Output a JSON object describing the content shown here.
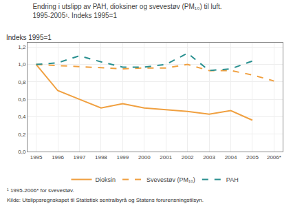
{
  "chart_data": {
    "type": "line",
    "title": "Endring i utslipp av PAH, dioksiner og svevestøv (PM₁₀) til luft.\n1995-2005¹. Indeks 1995=1",
    "subtitle": "Indeks 1995=1",
    "annotations": [
      "¹ 1995-2006* for svevestøv.",
      "Kilde: Utslippsregnskapet til Statistisk sentralbyrå og Statens forurensningstilsyn."
    ],
    "x": [
      1995,
      1996,
      1997,
      1998,
      1999,
      2000,
      2001,
      2002,
      2003,
      2004,
      2005,
      2006
    ],
    "series": [
      {
        "name": "Dioksin",
        "color": "#f0a040",
        "line_style": "solid",
        "values": [
          1.0,
          0.7,
          0.6,
          0.5,
          0.55,
          0.5,
          0.48,
          0.46,
          0.43,
          0.47,
          0.36,
          null
        ]
      },
      {
        "name": "Svevestøv (PM₁₀)",
        "color": "#f0a040",
        "line_style": "dashed",
        "x": [
          1995,
          1999,
          2000,
          2001,
          2002,
          2003,
          2004,
          2005,
          2006
        ],
        "values": [
          1.0,
          0.95,
          0.96,
          0.96,
          1.0,
          0.93,
          0.93,
          0.88,
          0.81
        ]
      },
      {
        "name": "PAH",
        "color": "#2a9090",
        "line_style": "dashed",
        "values": [
          1.0,
          1.02,
          1.1,
          1.03,
          0.97,
          0.97,
          1.0,
          1.13,
          0.93,
          0.95,
          1.04,
          null
        ]
      }
    ],
    "xlim": [
      1994.6,
      2006.4
    ],
    "xticks": [
      1995,
      1996,
      1997,
      1998,
      1999,
      2000,
      2001,
      2002,
      2003,
      2004,
      2005,
      {
        "value": 2006,
        "label": "2006*"
      }
    ],
    "ylim": [
      0.0,
      1.25
    ],
    "yticks": [
      {
        "value": 0.0,
        "label": "0,0"
      },
      {
        "value": 0.2,
        "label": "0,2"
      },
      {
        "value": 0.4,
        "label": "0,4"
      },
      {
        "value": 0.6,
        "label": "0,6"
      },
      {
        "value": 0.8,
        "label": "0,8"
      },
      {
        "value": 1.0,
        "label": "1,0"
      },
      {
        "value": 1.2,
        "label": "1,2"
      }
    ],
    "grid": true,
    "legend": "bottom"
  }
}
